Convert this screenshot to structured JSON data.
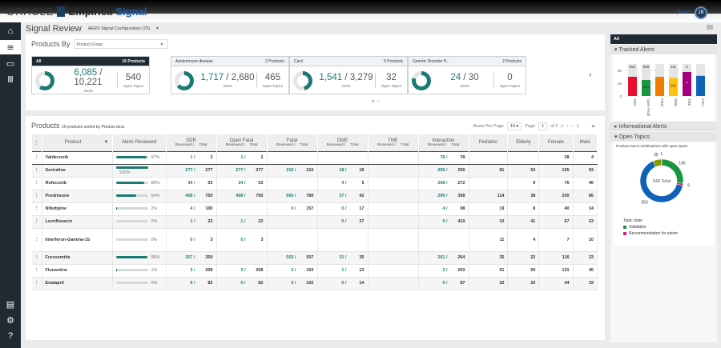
{
  "app": {
    "oracle": "ORACLE",
    "empirica": "Empirica",
    "signal": "Signal",
    "user": "jbrown",
    "initials": "JB"
  },
  "header": {
    "title": "Signal Review",
    "config": "AERS Signal Configuration (70)"
  },
  "products_by": {
    "label": "Products By",
    "value": "Product Group"
  },
  "cards": [
    {
      "name": "All",
      "products": "16 Products",
      "reviewed": "6,085",
      "total": "10,221",
      "alerts_label": "Alerts",
      "open_topics": "540",
      "open_label": "Open Topics",
      "fraction": 0.6
    },
    {
      "name": "Autoimmune disease",
      "products": "2 Products",
      "reviewed": "1,717",
      "total": "2,680",
      "alerts_label": "Alerts",
      "open_topics": "465",
      "open_label": "Open Topics",
      "fraction": 0.64
    },
    {
      "name": "Card",
      "products": "5 Products",
      "reviewed": "1,541",
      "total": "3,279",
      "alerts_label": "Alerts",
      "open_topics": "32",
      "open_label": "Open Topics",
      "fraction": 0.47
    },
    {
      "name": "Genetic Disorder P...",
      "products": "2 Products",
      "reviewed": "24",
      "total": "30",
      "alerts_label": "Alerts",
      "open_topics": "0",
      "open_label": "Open Topics",
      "fraction": 0.8
    }
  ],
  "colors": {
    "accent": "#1b7a73",
    "nav": "#1f2a33"
  },
  "table": {
    "title": "Products",
    "subtitle": "16 products sorted by Product desc",
    "rows_per_page_label": "Rows Per Page",
    "rows_per_page": "10",
    "page_label": "Page",
    "page": "1",
    "of": "of 2",
    "headers": {
      "product": "Product",
      "alerts_reviewed": "Alerts Reviewed",
      "sdr": "SDR",
      "open_fatal": "Open Fatal",
      "fatal": "Fatal",
      "dme": "DME",
      "tme": "TME",
      "interaction": "Interaction",
      "pediatric": "Pediatric",
      "elderly": "Elderly",
      "female": "Female",
      "male": "Male",
      "reviewed": "Reviewed /",
      "total": "Total"
    },
    "rows": [
      {
        "product": "Valdecoxib",
        "pct": "97%",
        "p": 97,
        "sdr": [
          "1 /",
          "2"
        ],
        "open_fatal": [
          "1 /",
          "2"
        ],
        "fatal": [
          "",
          ""
        ],
        "dme": [
          "",
          ""
        ],
        "tme": [
          "",
          ""
        ],
        "interaction": [
          "78 /",
          "78"
        ],
        "pediatric": "",
        "elderly": "",
        "female": "28",
        "male": "4"
      },
      {
        "product": "Sertraline",
        "pct": "100%",
        "p": 100,
        "sdr": [
          "277 /",
          "277"
        ],
        "open_fatal": [
          "277 /",
          "277"
        ],
        "fatal": [
          "216 /",
          "216"
        ],
        "dme": [
          "18 /",
          "18"
        ],
        "tme": [
          "",
          ""
        ],
        "interaction": [
          "256 /",
          "256"
        ],
        "pediatric": "81",
        "elderly": "53",
        "female": "105",
        "male": "93"
      },
      {
        "product": "Rofecoxib",
        "pct": "88%",
        "p": 88,
        "sdr": [
          "34 /",
          "53"
        ],
        "open_fatal": [
          "34 /",
          "53"
        ],
        "fatal": [
          "",
          ""
        ],
        "dme": [
          "4 /",
          "5"
        ],
        "tme": [
          "",
          ""
        ],
        "interaction": [
          "268 /",
          "272"
        ],
        "pediatric": "",
        "elderly": "9",
        "female": "76",
        "male": "46"
      },
      {
        "product": "Prednisone",
        "pct": "64%",
        "p": 64,
        "sdr": [
          "408 /",
          "750"
        ],
        "open_fatal": [
          "408 /",
          "750"
        ],
        "fatal": [
          "565 /",
          "780"
        ],
        "dme": [
          "37 /",
          "42"
        ],
        "tme": [
          "",
          ""
        ],
        "interaction": [
          "299 /",
          "358"
        ],
        "pediatric": "114",
        "elderly": "38",
        "female": "200",
        "male": "86"
      },
      {
        "product": "Nifedipine",
        "pct": "2%",
        "p": 2,
        "sdr": [
          "4 /",
          "100"
        ],
        "open_fatal": [
          "",
          ""
        ],
        "fatal": [
          "0 /",
          "157"
        ],
        "dme": [
          "0 /",
          "17"
        ],
        "tme": [
          "",
          ""
        ],
        "interaction": [
          "4 /",
          "98"
        ],
        "pediatric": "19",
        "elderly": "8",
        "female": "40",
        "male": "14"
      },
      {
        "product": "Levofloxacin",
        "pct": "0%",
        "p": 0,
        "sdr": [
          "1 /",
          "22"
        ],
        "open_fatal": [
          "1 /",
          "22"
        ],
        "fatal": [
          "",
          ""
        ],
        "dme": [
          "0 /",
          "27"
        ],
        "tme": [
          "",
          ""
        ],
        "interaction": [
          "0 /",
          "419"
        ],
        "pediatric": "10",
        "elderly": "41",
        "female": "67",
        "male": "23"
      },
      {
        "product": "Interferon-Gamma-1b",
        "pct": "0%",
        "p": 0,
        "sdr": [
          "0 /",
          "3"
        ],
        "open_fatal": [
          "0 /",
          "3"
        ],
        "fatal": [
          "",
          ""
        ],
        "dme": [
          "",
          ""
        ],
        "tme": [
          "",
          ""
        ],
        "interaction": [
          "",
          ""
        ],
        "pediatric": "11",
        "elderly": "4",
        "female": "7",
        "male": "10"
      },
      {
        "product": "Furosemide",
        "pct": "98%",
        "p": 98,
        "sdr": [
          "257 /",
          "259"
        ],
        "open_fatal": [
          "",
          ""
        ],
        "fatal": [
          "503 /",
          "507"
        ],
        "dme": [
          "31 /",
          "35"
        ],
        "tme": [
          "",
          ""
        ],
        "interaction": [
          "261 /",
          "264"
        ],
        "pediatric": "35",
        "elderly": "22",
        "female": "116",
        "male": "33"
      },
      {
        "product": "Fluoxetine",
        "pct": "1%",
        "p": 1,
        "sdr": [
          "3 /",
          "208"
        ],
        "open_fatal": [
          "3 /",
          "208"
        ],
        "fatal": [
          "2 /",
          "103"
        ],
        "dme": [
          "1 /",
          "13"
        ],
        "tme": [
          "",
          ""
        ],
        "interaction": [
          "3 /",
          "203"
        ],
        "pediatric": "51",
        "elderly": "50",
        "female": "131",
        "male": "45"
      },
      {
        "product": "Enalapril",
        "pct": "0%",
        "p": 0,
        "sdr": [
          "0 /",
          "82"
        ],
        "open_fatal": [
          "0 /",
          "82"
        ],
        "fatal": [
          "0 /",
          "102"
        ],
        "dme": [
          "0 /",
          "14"
        ],
        "tme": [
          "",
          ""
        ],
        "interaction": [
          "0 /",
          "87"
        ],
        "pediatric": "22",
        "elderly": "20",
        "female": "44",
        "male": "19"
      }
    ]
  },
  "right_panel": {
    "all": "All",
    "tracked": "Tracked Alerts",
    "informational": "Informational Alerts",
    "open_topics": "Open Topics",
    "open_caption": "Product-event combinations with open topics",
    "total_label": "540 Total",
    "legend_title": "Topic state",
    "legend": [
      {
        "label": "Validation",
        "color": "#1a9641"
      },
      {
        "label": "Recommendation for action",
        "color": "#e0197d"
      }
    ]
  },
  "chart_data": [
    {
      "type": "bar",
      "title": "",
      "categories": [
        "SDR",
        "Open Fatal",
        "Fatal",
        "DME",
        "TME",
        "Inter..."
      ],
      "yticks": [
        "0",
        "40",
        "80"
      ],
      "ylim": [
        0,
        100
      ],
      "values": [
        60,
        50,
        60,
        57,
        75,
        63
      ],
      "colors": [
        "#e8102e",
        "#1a9641",
        "#f07c00",
        "#ffc20e",
        "#a3007d",
        "#1062b7"
      ],
      "top_labels": [
        "992",
        "890",
        "",
        "111",
        "2",
        ""
      ],
      "inner_labels": [
        "",
        "551",
        "",
        "152",
        "7",
        ""
      ]
    },
    {
      "type": "pie",
      "title": "",
      "total": 540,
      "values": [
        350,
        145,
        9,
        35,
        1
      ],
      "labels": [
        "350",
        "145",
        "9",
        "35",
        "1"
      ],
      "colors": [
        "#1062b7",
        "#1a9641",
        "#e0197d",
        "#8a9a00",
        "#cccccc"
      ]
    }
  ]
}
